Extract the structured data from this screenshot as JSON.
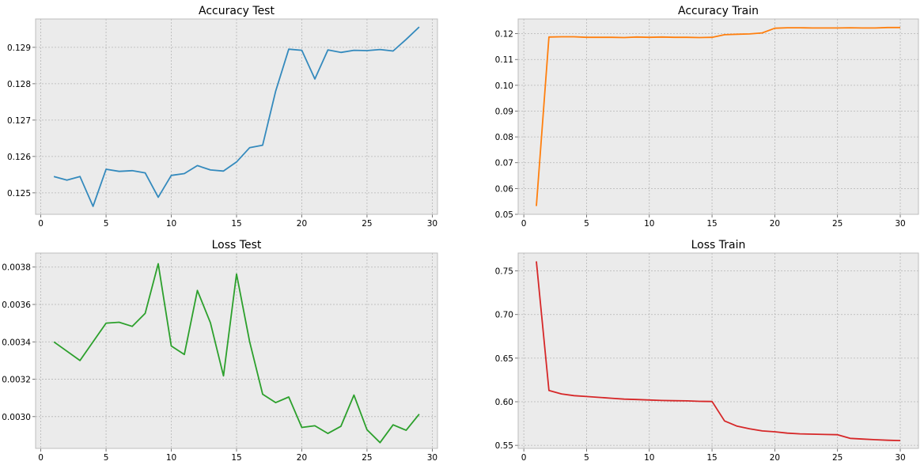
{
  "chart_data": [
    {
      "type": "line",
      "title": "Accuracy Test",
      "color": "#348abd",
      "x": [
        1,
        2,
        3,
        4,
        5,
        6,
        7,
        8,
        9,
        10,
        11,
        12,
        13,
        14,
        15,
        16,
        17,
        18,
        19,
        20,
        21,
        22,
        23,
        24,
        25,
        26,
        27,
        28,
        29
      ],
      "y": [
        0.12545,
        0.12535,
        0.12545,
        0.12463,
        0.12565,
        0.12559,
        0.12561,
        0.12555,
        0.12488,
        0.12548,
        0.12553,
        0.12575,
        0.12563,
        0.1256,
        0.12585,
        0.12624,
        0.12631,
        0.1278,
        0.12895,
        0.12892,
        0.12813,
        0.12893,
        0.12886,
        0.12892,
        0.12891,
        0.12894,
        0.1289,
        0.12922,
        0.12956
      ],
      "xlim": [
        -0.4,
        30.4
      ],
      "ylim": [
        0.12441,
        0.12978
      ],
      "xticks": [
        "0",
        "5",
        "10",
        "15",
        "20",
        "25",
        "30"
      ],
      "yticks": [
        "0.125",
        "0.126",
        "0.127",
        "0.128",
        "0.129"
      ],
      "grid": true
    },
    {
      "type": "line",
      "title": "Accuracy Train",
      "color": "#ff7f0e",
      "x": [
        1,
        2,
        3,
        4,
        5,
        6,
        7,
        8,
        9,
        10,
        11,
        12,
        13,
        14,
        15,
        16,
        17,
        18,
        19,
        20,
        21,
        22,
        23,
        24,
        25,
        26,
        27,
        28,
        29,
        30
      ],
      "y": [
        0.0532,
        0.1187,
        0.1188,
        0.1188,
        0.1186,
        0.1186,
        0.1186,
        0.1185,
        0.1187,
        0.1186,
        0.1187,
        0.1186,
        0.1186,
        0.1185,
        0.1186,
        0.1196,
        0.1198,
        0.1199,
        0.1203,
        0.1221,
        0.1223,
        0.1223,
        0.1222,
        0.1222,
        0.1222,
        0.1223,
        0.1222,
        0.1222,
        0.1224,
        0.1224
      ],
      "xlim": [
        -0.45,
        31.45
      ],
      "ylim": [
        0.05,
        0.1257
      ],
      "xticks": [
        "0",
        "5",
        "10",
        "15",
        "20",
        "25",
        "30"
      ],
      "yticks": [
        "0.05",
        "0.06",
        "0.07",
        "0.08",
        "0.09",
        "0.10",
        "0.11",
        "0.12"
      ],
      "grid": true
    },
    {
      "type": "line",
      "title": "Loss Test",
      "color": "#2ca02c",
      "x": [
        1,
        3,
        5,
        6,
        7,
        8,
        9,
        10,
        11,
        12,
        13,
        14,
        15,
        16,
        17,
        18,
        19,
        20,
        21,
        22,
        23,
        24,
        25,
        26,
        27,
        28,
        29
      ],
      "y": [
        0.0034,
        0.0033,
        0.0035,
        0.003505,
        0.003483,
        0.003552,
        0.003818,
        0.003378,
        0.003332,
        0.003675,
        0.003502,
        0.003218,
        0.003763,
        0.003402,
        0.00312,
        0.003075,
        0.003105,
        0.002942,
        0.002951,
        0.00291,
        0.002948,
        0.003115,
        0.00293,
        0.002861,
        0.002956,
        0.002927,
        0.003013
      ],
      "xlim": [
        -0.4,
        30.4
      ],
      "ylim": [
        0.00283,
        0.003875
      ],
      "xticks": [
        "0",
        "5",
        "10",
        "15",
        "20",
        "25",
        "30"
      ],
      "yticks": [
        "0.0030",
        "0.0032",
        "0.0034",
        "0.0036",
        "0.0038"
      ],
      "grid": true
    },
    {
      "type": "line",
      "title": "Loss Train",
      "color": "#d62728",
      "x": [
        1,
        2,
        3,
        4,
        5,
        6,
        7,
        8,
        9,
        10,
        11,
        12,
        13,
        14,
        15,
        16,
        17,
        18,
        19,
        20,
        21,
        22,
        23,
        24,
        25,
        26,
        27,
        28,
        29,
        30
      ],
      "y": [
        0.761,
        0.613,
        0.609,
        0.607,
        0.606,
        0.605,
        0.604,
        0.603,
        0.6025,
        0.602,
        0.6015,
        0.6012,
        0.601,
        0.6005,
        0.6003,
        0.578,
        0.572,
        0.569,
        0.5665,
        0.5655,
        0.564,
        0.5632,
        0.5628,
        0.5625,
        0.5622,
        0.558,
        0.5572,
        0.5565,
        0.5558,
        0.5555
      ],
      "xlim": [
        -0.45,
        31.45
      ],
      "ylim": [
        0.5465,
        0.7705
      ],
      "xticks": [
        "0",
        "5",
        "10",
        "15",
        "20",
        "25",
        "30"
      ],
      "yticks": [
        "0.55",
        "0.60",
        "0.65",
        "0.70",
        "0.75"
      ],
      "grid": true
    }
  ]
}
